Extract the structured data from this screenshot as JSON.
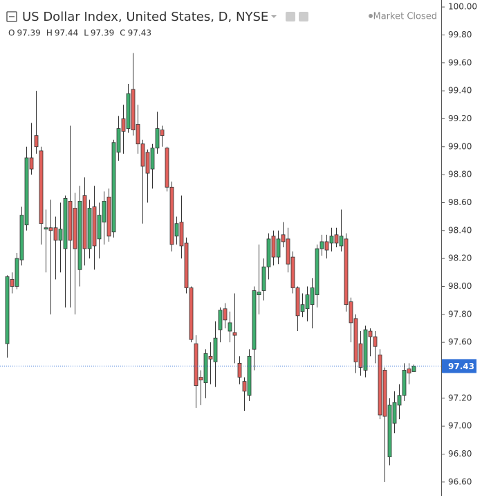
{
  "chart_data": {
    "type": "candlestick",
    "title": "US Dollar Index, United States, D, NYSE",
    "status": "Market Closed",
    "ohlc_labels": [
      "O",
      "H",
      "L",
      "C"
    ],
    "up_color": "#3fae6f",
    "down_color": "#e0605b",
    "price_line_color": "#2f6fd6",
    "grid": false,
    "ylim": [
      96.5,
      100.05
    ],
    "yticks": [
      {
        "value": 96.6,
        "label": "96.60"
      },
      {
        "value": 96.8,
        "label": "96.80"
      },
      {
        "value": 97.0,
        "label": "97.00"
      },
      {
        "value": 97.2,
        "label": "97.20"
      },
      {
        "value": 97.4,
        "label": "97.40"
      },
      {
        "value": 97.6,
        "label": "97.60"
      },
      {
        "value": 97.8,
        "label": "97.80"
      },
      {
        "value": 98.0,
        "label": "98.00"
      },
      {
        "value": 98.2,
        "label": "98.20"
      },
      {
        "value": 98.4,
        "label": "98.40"
      },
      {
        "value": 98.6,
        "label": "98.60"
      },
      {
        "value": 98.8,
        "label": "98.80"
      },
      {
        "value": 99.0,
        "label": "99.00"
      },
      {
        "value": 99.2,
        "label": "99.20"
      },
      {
        "value": 99.4,
        "label": "99.40"
      },
      {
        "value": 99.6,
        "label": "99.60"
      },
      {
        "value": 99.8,
        "label": "99.80"
      },
      {
        "value": 100.0,
        "label": "100.00"
      }
    ],
    "open": [
      97.59,
      98.05,
      98.0,
      98.19,
      98.44,
      98.92,
      99.08,
      98.97,
      98.41,
      98.42,
      98.42,
      98.33,
      98.27,
      98.61,
      98.56,
      98.12,
      98.65,
      98.27,
      98.57,
      98.34,
      98.46,
      98.64,
      98.39,
      98.96,
      99.2,
      99.13,
      99.41,
      99.16,
      99.02,
      98.96,
      98.84,
      98.99,
      99.12,
      98.99,
      98.71,
      98.36,
      98.46,
      98.31,
      97.99,
      97.59,
      97.35,
      97.31,
      97.5,
      97.46,
      97.69,
      97.84,
      97.68,
      97.67,
      97.45,
      97.32,
      97.22,
      97.55,
      97.94,
      97.97,
      98.14,
      98.36,
      98.21,
      98.37,
      98.34,
      98.21,
      97.99,
      97.82,
      97.84,
      97.87,
      97.94,
      98.27,
      98.32,
      98.31,
      98.37,
      98.29,
      98.34,
      97.89,
      97.77,
      97.59,
      97.4,
      97.68,
      97.64,
      97.51,
      97.4,
      96.78,
      97.02,
      97.15,
      97.22,
      97.41,
      97.39
    ],
    "high": [
      98.08,
      98.1,
      98.24,
      98.57,
      99.0,
      99.17,
      99.4,
      99.0,
      98.55,
      98.62,
      98.5,
      98.6,
      98.65,
      99.15,
      98.67,
      98.72,
      98.78,
      98.62,
      98.72,
      98.6,
      98.68,
      98.7,
      99.05,
      99.22,
      99.3,
      99.45,
      99.67,
      99.3,
      99.05,
      98.98,
      99.02,
      99.25,
      99.15,
      99.0,
      98.75,
      98.5,
      98.65,
      98.35,
      98.0,
      97.65,
      97.4,
      97.55,
      97.6,
      97.75,
      97.85,
      97.88,
      97.82,
      97.95,
      97.5,
      97.35,
      97.55,
      98.0,
      98.3,
      98.2,
      98.38,
      98.4,
      98.4,
      98.46,
      98.42,
      98.25,
      98.0,
      97.95,
      98.0,
      98.06,
      98.3,
      98.37,
      98.37,
      98.42,
      98.42,
      98.55,
      98.38,
      97.92,
      97.8,
      97.68,
      97.72,
      97.7,
      97.68,
      97.55,
      97.42,
      97.2,
      97.25,
      97.3,
      97.45,
      97.45,
      97.44
    ],
    "low": [
      97.49,
      97.95,
      97.98,
      98.15,
      98.4,
      98.8,
      98.95,
      98.3,
      98.1,
      97.8,
      98.05,
      98.1,
      97.85,
      97.85,
      97.8,
      98.0,
      98.15,
      98.2,
      98.12,
      98.2,
      98.3,
      98.32,
      98.35,
      98.9,
      98.95,
      99.1,
      99.08,
      98.95,
      98.45,
      98.6,
      98.7,
      98.95,
      99.0,
      98.68,
      98.25,
      98.3,
      98.2,
      97.95,
      97.6,
      97.13,
      97.15,
      97.2,
      97.3,
      97.28,
      97.6,
      97.7,
      97.6,
      97.45,
      97.3,
      97.11,
      97.18,
      97.4,
      97.8,
      97.9,
      98.05,
      98.15,
      98.16,
      98.28,
      98.1,
      97.95,
      97.68,
      97.78,
      97.75,
      97.7,
      97.85,
      98.22,
      98.2,
      98.25,
      98.28,
      98.25,
      97.82,
      97.6,
      97.38,
      97.36,
      97.35,
      97.5,
      97.45,
      97.05,
      96.6,
      96.72,
      96.95,
      97.05,
      97.18,
      97.3,
      97.39
    ],
    "close": [
      98.07,
      98.0,
      98.2,
      98.51,
      98.92,
      98.84,
      99.0,
      98.45,
      98.42,
      98.4,
      98.33,
      98.41,
      98.63,
      98.33,
      98.27,
      98.61,
      98.27,
      98.56,
      98.29,
      98.51,
      98.61,
      98.36,
      99.03,
      99.13,
      99.11,
      99.38,
      99.12,
      99.02,
      98.86,
      98.81,
      98.99,
      99.13,
      99.08,
      98.71,
      98.3,
      98.45,
      98.29,
      97.99,
      97.62,
      97.29,
      97.33,
      97.52,
      97.48,
      97.63,
      97.83,
      97.76,
      97.74,
      97.65,
      97.35,
      97.25,
      97.5,
      97.97,
      97.96,
      98.14,
      98.34,
      98.21,
      98.34,
      98.32,
      98.16,
      97.99,
      97.79,
      97.87,
      97.94,
      97.99,
      98.27,
      98.32,
      98.26,
      98.36,
      98.31,
      98.36,
      97.87,
      97.74,
      97.46,
      97.42,
      97.69,
      97.64,
      97.57,
      97.08,
      97.07,
      97.15,
      97.17,
      97.22,
      97.4,
      97.38,
      97.43
    ]
  }
}
